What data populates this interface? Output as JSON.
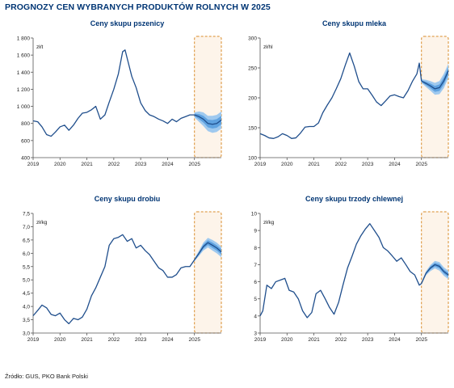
{
  "title": "PROGNOZY CEN WYBRANYCH PRODUKTÓW ROLNYCH W 2025",
  "source": "Źródło: GUS, PKO Bank Polski",
  "colors": {
    "line": "#1f4e8c",
    "band_outer": "#9fc9ef",
    "band_inner": "#5fa2e0",
    "forecast_box": "#d98c2b",
    "forecast_fill": "#fdf4ea",
    "title": "#003574"
  },
  "chart_data": [
    {
      "type": "line",
      "title": "Ceny skupu pszenicy",
      "unit": "zł/t",
      "x_ticks": [
        "2019",
        "2020",
        "2021",
        "2022",
        "2023",
        "2024",
        "2025"
      ],
      "x_range": [
        2019.0,
        2026.0
      ],
      "ylim": [
        400,
        1800
      ],
      "y_ticks": [
        "400",
        "600",
        "800",
        "1 000",
        "1 200",
        "1 400",
        "1 600",
        "1 800"
      ],
      "y_tick_values": [
        400,
        600,
        800,
        1000,
        1200,
        1400,
        1600,
        1800
      ],
      "forecast_start": 2025.0,
      "x": [
        2019.0,
        2019.17,
        2019.33,
        2019.5,
        2019.67,
        2019.83,
        2020.0,
        2020.17,
        2020.33,
        2020.5,
        2020.67,
        2020.83,
        2021.0,
        2021.17,
        2021.33,
        2021.5,
        2021.67,
        2021.83,
        2022.0,
        2022.17,
        2022.33,
        2022.42,
        2022.5,
        2022.67,
        2022.83,
        2023.0,
        2023.17,
        2023.33,
        2023.5,
        2023.67,
        2023.83,
        2024.0,
        2024.17,
        2024.33,
        2024.5,
        2024.67,
        2024.83,
        2025.0
      ],
      "y": [
        830,
        820,
        760,
        670,
        650,
        700,
        760,
        780,
        720,
        780,
        860,
        920,
        930,
        960,
        1000,
        850,
        900,
        1050,
        1200,
        1380,
        1640,
        1660,
        1560,
        1350,
        1220,
        1040,
        950,
        900,
        880,
        850,
        830,
        800,
        850,
        820,
        860,
        880,
        900,
        900
      ],
      "forecast_x": [
        2025.0,
        2025.17,
        2025.33,
        2025.5,
        2025.67,
        2025.83,
        2026.0
      ],
      "forecast_y": [
        900,
        880,
        850,
        800,
        790,
        800,
        840
      ],
      "band_outer": [
        30,
        60,
        80,
        90,
        100,
        100,
        100
      ],
      "band_inner": [
        15,
        30,
        40,
        45,
        50,
        50,
        50
      ]
    },
    {
      "type": "line",
      "title": "Ceny skupu mleka",
      "unit": "zł/hl",
      "x_ticks": [
        "2019",
        "2020",
        "2021",
        "2022",
        "2023",
        "2024",
        "2025"
      ],
      "x_range": [
        2019.0,
        2026.0
      ],
      "ylim": [
        100,
        300
      ],
      "y_ticks": [
        "100",
        "150",
        "200",
        "250",
        "300"
      ],
      "y_tick_values": [
        100,
        150,
        200,
        250,
        300
      ],
      "forecast_start": 2025.0,
      "x": [
        2019.0,
        2019.17,
        2019.33,
        2019.5,
        2019.67,
        2019.83,
        2020.0,
        2020.17,
        2020.33,
        2020.5,
        2020.67,
        2020.83,
        2021.0,
        2021.17,
        2021.33,
        2021.5,
        2021.67,
        2021.83,
        2022.0,
        2022.17,
        2022.33,
        2022.5,
        2022.67,
        2022.83,
        2023.0,
        2023.17,
        2023.33,
        2023.5,
        2023.67,
        2023.83,
        2024.0,
        2024.17,
        2024.33,
        2024.5,
        2024.67,
        2024.83,
        2024.92,
        2025.0
      ],
      "y": [
        140,
        137,
        133,
        132,
        135,
        140,
        137,
        132,
        133,
        141,
        151,
        152,
        152,
        158,
        175,
        188,
        200,
        215,
        232,
        255,
        275,
        253,
        227,
        215,
        215,
        204,
        193,
        187,
        195,
        203,
        205,
        202,
        200,
        212,
        228,
        240,
        258,
        228
      ],
      "forecast_x": [
        2025.0,
        2025.17,
        2025.33,
        2025.5,
        2025.67,
        2025.83,
        2026.0
      ],
      "forecast_y": [
        228,
        224,
        220,
        215,
        217,
        228,
        245
      ],
      "band_outer": [
        3,
        6,
        8,
        10,
        11,
        12,
        12
      ],
      "band_inner": [
        1.5,
        3,
        4,
        5,
        5.5,
        6,
        6
      ]
    },
    {
      "type": "line",
      "title": "Ceny skupu drobiu",
      "unit": "zł/kg",
      "x_ticks": [
        "2019",
        "2020",
        "2021",
        "2022",
        "2023",
        "2024",
        "2025"
      ],
      "x_range": [
        2019.0,
        2026.0
      ],
      "ylim": [
        3.0,
        7.5
      ],
      "y_ticks": [
        "3,0",
        "3,5",
        "4,0",
        "4,5",
        "5,0",
        "5,5",
        "6,0",
        "6,5",
        "7,0",
        "7,5"
      ],
      "y_tick_values": [
        3.0,
        3.5,
        4.0,
        4.5,
        5.0,
        5.5,
        6.0,
        6.5,
        7.0,
        7.5
      ],
      "forecast_start": 2025.0,
      "x": [
        2019.0,
        2019.17,
        2019.33,
        2019.5,
        2019.67,
        2019.83,
        2020.0,
        2020.17,
        2020.33,
        2020.5,
        2020.67,
        2020.83,
        2021.0,
        2021.17,
        2021.33,
        2021.5,
        2021.67,
        2021.83,
        2022.0,
        2022.17,
        2022.33,
        2022.5,
        2022.67,
        2022.83,
        2023.0,
        2023.17,
        2023.33,
        2023.5,
        2023.67,
        2023.83,
        2024.0,
        2024.17,
        2024.33,
        2024.5,
        2024.67,
        2024.83,
        2025.0
      ],
      "y": [
        3.65,
        3.85,
        4.05,
        3.95,
        3.7,
        3.65,
        3.75,
        3.5,
        3.35,
        3.55,
        3.5,
        3.6,
        3.9,
        4.4,
        4.7,
        5.1,
        5.5,
        6.3,
        6.55,
        6.6,
        6.7,
        6.45,
        6.55,
        6.2,
        6.3,
        6.1,
        5.95,
        5.7,
        5.45,
        5.35,
        5.1,
        5.1,
        5.2,
        5.45,
        5.5,
        5.5,
        5.75
      ],
      "forecast_x": [
        2025.0,
        2025.17,
        2025.33,
        2025.5,
        2025.67,
        2025.83,
        2026.0
      ],
      "forecast_y": [
        5.75,
        6.0,
        6.25,
        6.4,
        6.3,
        6.2,
        6.05
      ],
      "band_outer": [
        0.05,
        0.1,
        0.15,
        0.18,
        0.2,
        0.2,
        0.2
      ],
      "band_inner": [
        0.03,
        0.05,
        0.08,
        0.09,
        0.1,
        0.1,
        0.1
      ]
    },
    {
      "type": "line",
      "title": "Ceny skupu trzody chlewnej",
      "unit": "zł/kg",
      "x_ticks": [
        "2019",
        "2020",
        "2021",
        "2022",
        "2023",
        "2024",
        "2025"
      ],
      "x_range": [
        2019.0,
        2026.0
      ],
      "ylim": [
        3,
        10
      ],
      "y_ticks": [
        "3",
        "4",
        "5",
        "6",
        "7",
        "8",
        "9",
        "10"
      ],
      "y_tick_values": [
        3,
        4,
        5,
        6,
        7,
        8,
        9,
        10
      ],
      "forecast_start": 2025.0,
      "x": [
        2019.0,
        2019.1,
        2019.25,
        2019.42,
        2019.58,
        2019.75,
        2019.92,
        2020.08,
        2020.25,
        2020.42,
        2020.58,
        2020.75,
        2020.92,
        2021.08,
        2021.25,
        2021.42,
        2021.58,
        2021.75,
        2021.92,
        2022.08,
        2022.25,
        2022.42,
        2022.58,
        2022.75,
        2022.92,
        2023.08,
        2023.25,
        2023.42,
        2023.58,
        2023.75,
        2023.92,
        2024.08,
        2024.25,
        2024.42,
        2024.58,
        2024.75,
        2024.92,
        2025.0
      ],
      "y": [
        4.0,
        4.3,
        5.8,
        5.6,
        6.0,
        6.1,
        6.2,
        5.5,
        5.4,
        5.0,
        4.3,
        3.9,
        4.2,
        5.3,
        5.5,
        5.0,
        4.5,
        4.1,
        4.8,
        5.8,
        6.8,
        7.5,
        8.2,
        8.7,
        9.1,
        9.4,
        9.0,
        8.6,
        8.0,
        7.8,
        7.5,
        7.2,
        7.4,
        7.0,
        6.6,
        6.4,
        5.8,
        5.9
      ],
      "forecast_x": [
        2025.0,
        2025.17,
        2025.33,
        2025.5,
        2025.67,
        2025.83,
        2026.0
      ],
      "forecast_y": [
        5.9,
        6.5,
        6.8,
        7.0,
        6.9,
        6.6,
        6.4
      ],
      "band_outer": [
        0.05,
        0.12,
        0.18,
        0.22,
        0.25,
        0.25,
        0.25
      ],
      "band_inner": [
        0.03,
        0.06,
        0.09,
        0.11,
        0.12,
        0.12,
        0.12
      ]
    }
  ]
}
